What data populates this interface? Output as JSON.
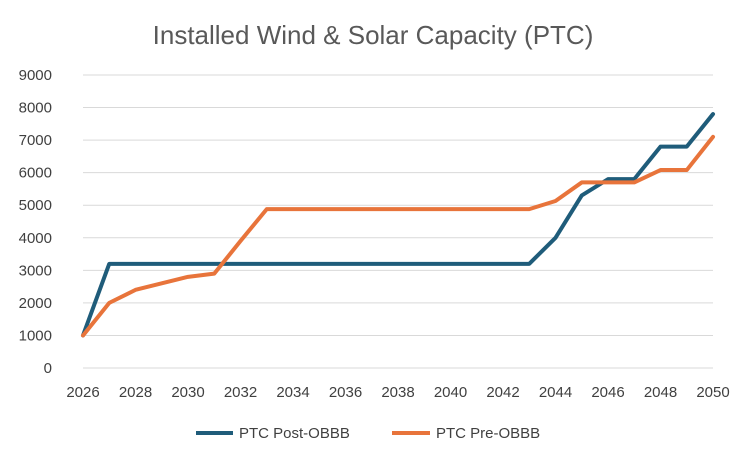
{
  "chart_data": {
    "type": "line",
    "title": "Installed Wind & Solar Capacity (PTC)",
    "xlabel": "",
    "ylabel": "",
    "xlim": [
      2026,
      2050
    ],
    "ylim": [
      0,
      9000
    ],
    "y_ticks": [
      "0",
      "1000",
      "2000",
      "3000",
      "4000",
      "5000",
      "6000",
      "7000",
      "8000",
      "9000"
    ],
    "x_ticks": [
      "2026",
      "2028",
      "2030",
      "2032",
      "2034",
      "2036",
      "2038",
      "2040",
      "2042",
      "2044",
      "2046",
      "2048",
      "2050"
    ],
    "grid": true,
    "legend_position": "bottom",
    "x": [
      2026,
      2027,
      2028,
      2029,
      2030,
      2031,
      2032,
      2033,
      2034,
      2035,
      2036,
      2037,
      2038,
      2039,
      2040,
      2041,
      2042,
      2043,
      2044,
      2045,
      2046,
      2047,
      2048,
      2049,
      2050
    ],
    "series": [
      {
        "name": "PTC Post-OBBB",
        "color": "#1f5c7a",
        "values": [
          1000,
          3200,
          3200,
          3200,
          3200,
          3200,
          3200,
          3200,
          3200,
          3200,
          3200,
          3200,
          3200,
          3200,
          3200,
          3200,
          3200,
          3200,
          4000,
          5300,
          5800,
          5800,
          6800,
          6800,
          7800
        ]
      },
      {
        "name": "PTC Pre-OBBB",
        "color": "#e8743b",
        "values": [
          1000,
          2000,
          2400,
          2600,
          2800,
          2900,
          3900,
          4880,
          4880,
          4880,
          4880,
          4880,
          4880,
          4880,
          4880,
          4880,
          4880,
          4880,
          5130,
          5700,
          5700,
          5700,
          6080,
          6080,
          7100
        ]
      }
    ]
  }
}
